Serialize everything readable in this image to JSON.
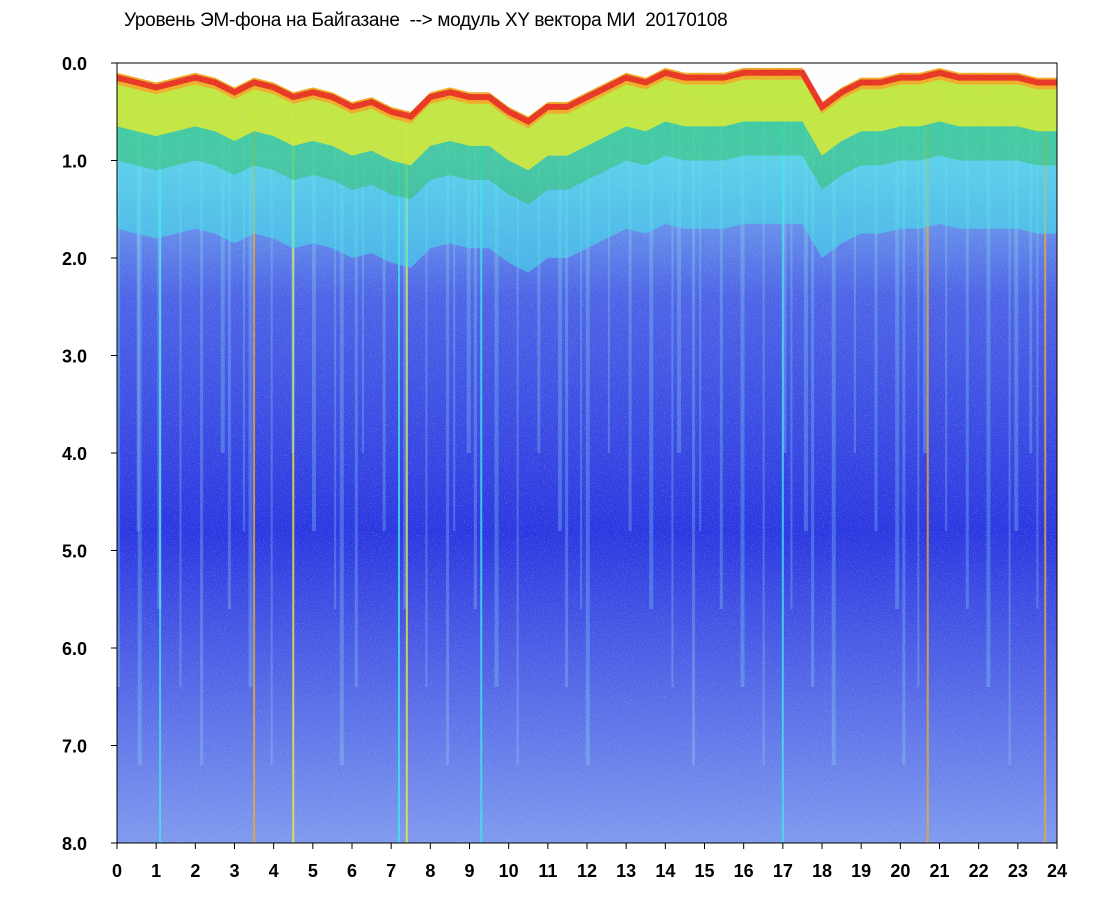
{
  "chart_data": {
    "type": "heatmap",
    "title": "Уровень ЭМ-фона на Байгазане  --> модуль XY вектора МИ  20170108",
    "xlabel": "",
    "ylabel": "",
    "xlim": [
      0,
      24
    ],
    "ylim": [
      8.0,
      0.0
    ],
    "x_tick_labels": [
      "0",
      "1",
      "2",
      "3",
      "4",
      "5",
      "6",
      "7",
      "8",
      "9",
      "10",
      "11",
      "12",
      "13",
      "14",
      "15",
      "16",
      "17",
      "18",
      "19",
      "20",
      "21",
      "22",
      "23",
      "24"
    ],
    "y_tick_labels": [
      "0.0",
      "1.0",
      "2.0",
      "3.0",
      "4.0",
      "5.0",
      "6.0",
      "7.0",
      "8.0"
    ],
    "color_scale": [
      "#1a1ae6",
      "#6e7ef0",
      "#9db4ee",
      "#3fe6e8",
      "#1cb81c",
      "#f0f020",
      "#f5a623",
      "#e81e1e"
    ],
    "grid": false,
    "legend": "none",
    "red_edge_profile": {
      "hours": [
        0,
        0.5,
        1,
        1.5,
        2,
        2.5,
        3,
        3.5,
        4,
        4.5,
        5,
        5.5,
        6,
        6.5,
        7,
        7.5,
        8,
        8.5,
        9,
        9.5,
        10,
        10.5,
        11,
        11.5,
        12,
        12.5,
        13,
        13.5,
        14,
        14.5,
        15,
        15.5,
        16,
        16.5,
        17,
        17.5,
        18,
        18.5,
        19,
        19.5,
        20,
        20.5,
        21,
        21.5,
        22,
        22.5,
        23,
        23.5,
        24
      ],
      "level": [
        0.1,
        0.15,
        0.2,
        0.15,
        0.1,
        0.15,
        0.25,
        0.15,
        0.2,
        0.3,
        0.25,
        0.3,
        0.4,
        0.35,
        0.45,
        0.5,
        0.3,
        0.25,
        0.3,
        0.3,
        0.45,
        0.55,
        0.4,
        0.4,
        0.3,
        0.2,
        0.1,
        0.15,
        0.05,
        0.1,
        0.1,
        0.1,
        0.05,
        0.05,
        0.05,
        0.05,
        0.4,
        0.25,
        0.15,
        0.15,
        0.1,
        0.1,
        0.05,
        0.1,
        0.1,
        0.1,
        0.1,
        0.15,
        0.15
      ]
    },
    "vertical_streaks": [
      {
        "hour": 1.1,
        "color": "#3fe6e8"
      },
      {
        "hour": 3.5,
        "color": "#f5a623"
      },
      {
        "hour": 4.5,
        "color": "#f0f020"
      },
      {
        "hour": 7.2,
        "color": "#3fe6e8"
      },
      {
        "hour": 7.4,
        "color": "#f0f020"
      },
      {
        "hour": 9.3,
        "color": "#3fe6e8"
      },
      {
        "hour": 17.0,
        "color": "#3fe6e8"
      },
      {
        "hour": 20.7,
        "color": "#f5a623"
      },
      {
        "hour": 23.7,
        "color": "#f5a623"
      }
    ]
  }
}
